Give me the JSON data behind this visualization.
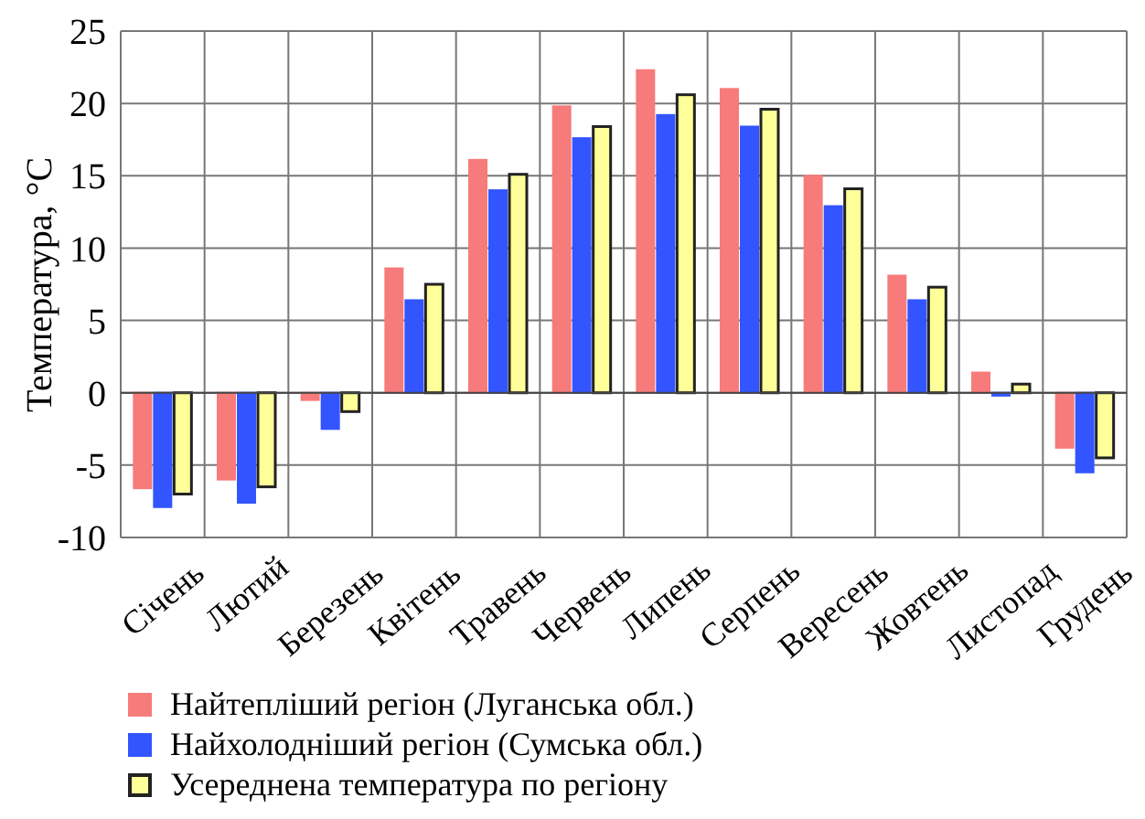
{
  "chart_data": {
    "type": "bar",
    "ylabel": "Температура, °C",
    "categories": [
      "Січень",
      "Лютий",
      "Березень",
      "Квітень",
      "Травень",
      "Червень",
      "Липень",
      "Серпень",
      "Вересень",
      "Жовтень",
      "Листопад",
      "Грудень"
    ],
    "series": [
      {
        "name": "Найтепліший регіон (Луганська обл.)",
        "color": "#f77b7b",
        "values": [
          -6.6,
          -6.0,
          -0.5,
          8.6,
          16.1,
          19.8,
          22.3,
          21.0,
          15.0,
          8.1,
          1.4,
          -3.8
        ]
      },
      {
        "name": "Найхолодніший регіон (Сумська обл.)",
        "color": "#3355ff",
        "values": [
          -7.9,
          -7.6,
          -2.5,
          6.4,
          14.0,
          17.6,
          19.2,
          18.4,
          12.9,
          6.4,
          -0.2,
          -5.5
        ]
      },
      {
        "name": "Усереднена температура по регіону",
        "color": "#ffff99",
        "values": [
          -7.0,
          -6.5,
          -1.3,
          7.5,
          15.1,
          18.4,
          20.6,
          19.6,
          14.1,
          7.3,
          0.6,
          -4.5
        ]
      }
    ],
    "ylim": [
      -10,
      25
    ],
    "yticks": [
      -10,
      -5,
      0,
      5,
      10,
      15,
      20,
      25
    ],
    "grid": true,
    "legend": "bottom"
  }
}
